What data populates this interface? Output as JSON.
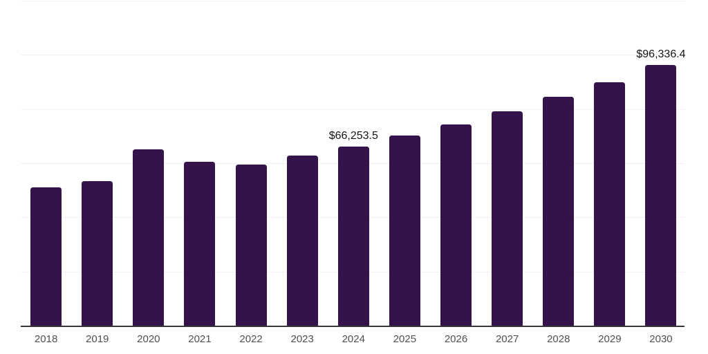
{
  "chart": {
    "bar_color": "#33134A",
    "axis_line_color": "#38383C",
    "gridline_color": "#F0F0F2",
    "background_color": "#FFFFFF",
    "data_label_color": "#141414",
    "tick_label_color": "#4F4F4F"
  },
  "chart_data": {
    "type": "bar",
    "categories": [
      "2018",
      "2019",
      "2020",
      "2021",
      "2022",
      "2023",
      "2024",
      "2025",
      "2026",
      "2027",
      "2028",
      "2029",
      "2030"
    ],
    "values": [
      51000,
      53300,
      65200,
      60600,
      59600,
      62900,
      66253.5,
      70200,
      74400,
      79100,
      84400,
      90000,
      96336.4
    ],
    "data_labels": {
      "2024": "$66,253.5",
      "2030": "$96,336.4"
    },
    "title": "",
    "xlabel": "",
    "ylabel": "",
    "ylim": [
      0,
      120000
    ],
    "gridline_interval": 20000,
    "grid": "horizontal-only",
    "legend": "none",
    "y_tick_labels_visible": false
  }
}
